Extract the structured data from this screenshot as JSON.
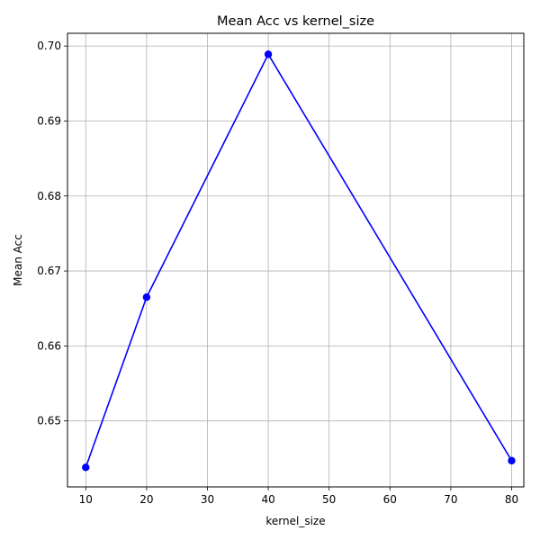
{
  "chart_data": {
    "type": "line",
    "title": "Mean Acc vs kernel_size",
    "xlabel": "kernel_size",
    "ylabel": "Mean Acc",
    "x": [
      10,
      20,
      40,
      80
    ],
    "series": [
      {
        "values": [
          0.6438,
          0.6665,
          0.6989,
          0.6447
        ],
        "color": "#0000ff",
        "marker": "circle"
      }
    ],
    "xlim": [
      7,
      82
    ],
    "ylim": [
      0.6412,
      0.7017
    ],
    "xticks": [
      10,
      20,
      30,
      40,
      50,
      60,
      70,
      80
    ],
    "xtick_labels": [
      "10",
      "20",
      "30",
      "40",
      "50",
      "60",
      "70",
      "80"
    ],
    "yticks": [
      0.65,
      0.66,
      0.67,
      0.68,
      0.69,
      0.7
    ],
    "ytick_labels": [
      "0.65",
      "0.66",
      "0.67",
      "0.68",
      "0.69",
      "0.70"
    ],
    "grid": true,
    "grid_color": "#b0b0b0"
  }
}
